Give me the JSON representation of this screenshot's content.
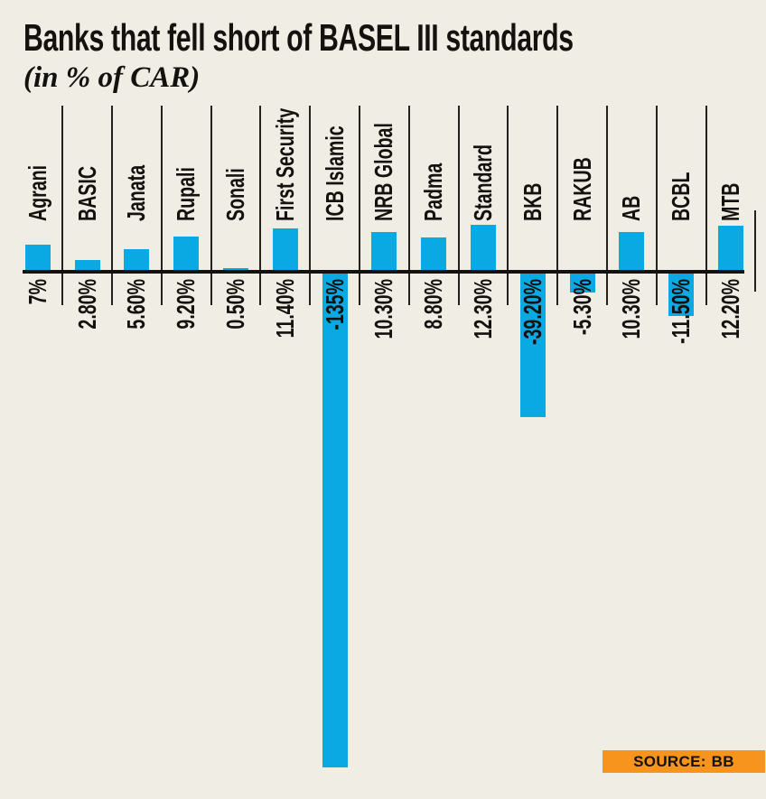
{
  "title": "Banks that fell short of BASEL III standards",
  "subtitle": "(in % of CAR)",
  "source": {
    "label": "SOURCE:",
    "value": "BB"
  },
  "colors": {
    "background": "#f0ede4",
    "bar": "#0aa9e4",
    "axis": "#14120f",
    "divider": "#23221f",
    "source_badge": "#f7941d",
    "text": "#14120f"
  },
  "chart_data": {
    "type": "bar",
    "orientation": "vertical",
    "title": "Banks that fell short of BASEL III standards",
    "ylabel": "% of CAR",
    "unit": "%",
    "baseline": 0,
    "ylim": [
      -140,
      15
    ],
    "grid": "column-dividers",
    "legend": "none",
    "categories": [
      "Agrani",
      "BASIC",
      "Janata",
      "Rupali",
      "Sonali",
      "First Security",
      "ICB Islamic",
      "NRB Global",
      "Padma",
      "Standard",
      "BKB",
      "RAKUB",
      "AB",
      "BCBL",
      "MTB"
    ],
    "values": [
      7,
      2.8,
      5.6,
      9.2,
      0.5,
      11.4,
      -135,
      10.3,
      8.8,
      12.3,
      -39.2,
      -5.3,
      10.3,
      -11.5,
      12.2
    ],
    "value_labels": [
      "7%",
      "2.80%",
      "5.60%",
      "9.20%",
      "0.50%",
      "11.40%",
      "-135%",
      "10.30%",
      "8.80%",
      "12.30%",
      "-39.20%",
      "-5.30%",
      "10.30%",
      "-11.50%",
      "12.20%"
    ],
    "source": "BB"
  }
}
